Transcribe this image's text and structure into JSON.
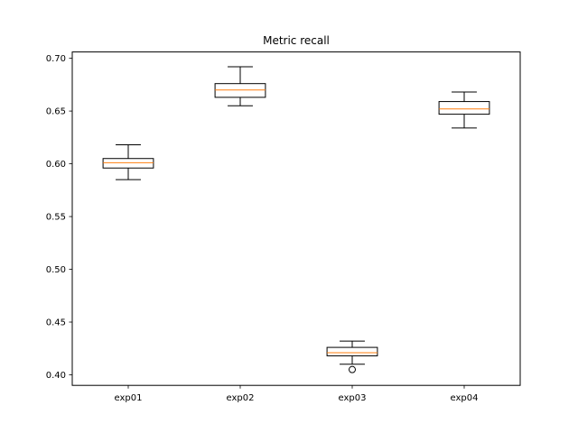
{
  "chart_data": {
    "type": "box",
    "title": "Metric recall",
    "xlabel": "",
    "ylabel": "",
    "categories": [
      "exp01",
      "exp02",
      "exp03",
      "exp04"
    ],
    "ylim": [
      0.39,
      0.706
    ],
    "yticks": [
      0.4,
      0.45,
      0.5,
      0.55,
      0.6,
      0.65,
      0.7
    ],
    "ytick_labels": [
      "0.40",
      "0.45",
      "0.50",
      "0.55",
      "0.60",
      "0.65",
      "0.70"
    ],
    "grid": false,
    "boxes": [
      {
        "whisker_low": 0.585,
        "q1": 0.596,
        "median": 0.601,
        "q3": 0.605,
        "whisker_high": 0.618,
        "outliers": []
      },
      {
        "whisker_low": 0.655,
        "q1": 0.663,
        "median": 0.67,
        "q3": 0.676,
        "whisker_high": 0.692,
        "outliers": []
      },
      {
        "whisker_low": 0.41,
        "q1": 0.418,
        "median": 0.421,
        "q3": 0.426,
        "whisker_high": 0.432,
        "outliers": [
          0.405
        ]
      },
      {
        "whisker_low": 0.634,
        "q1": 0.647,
        "median": 0.652,
        "q3": 0.659,
        "whisker_high": 0.668,
        "outliers": []
      }
    ],
    "colors": {
      "box": "#000000",
      "median": "#ff7f0e",
      "axes": "#000000"
    }
  }
}
